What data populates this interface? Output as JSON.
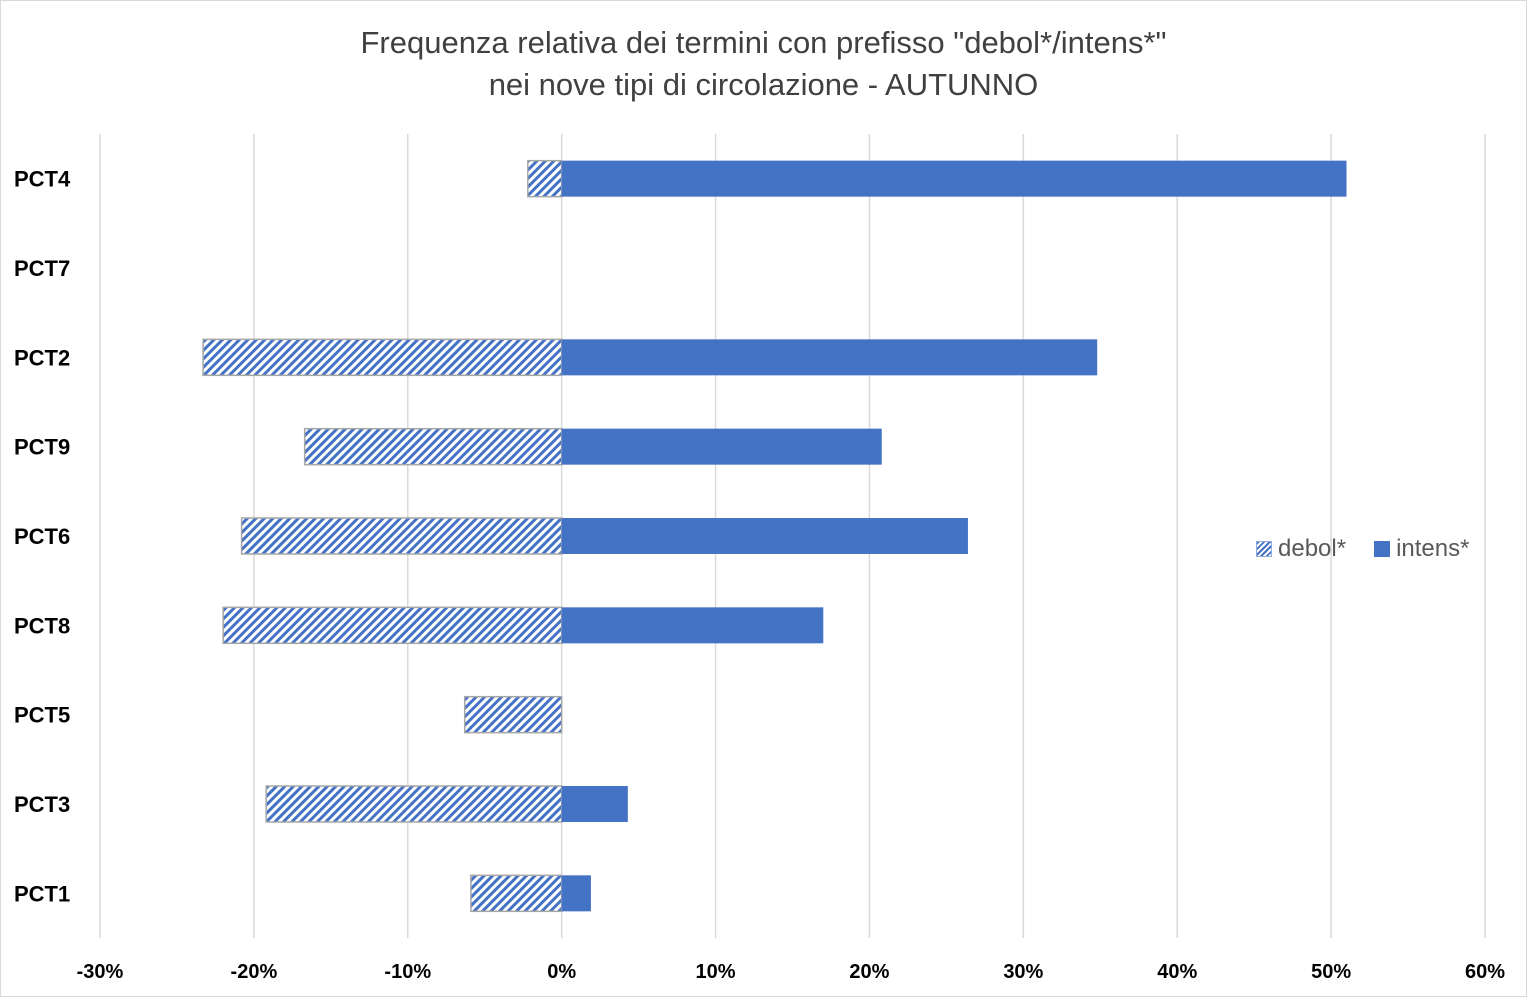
{
  "chart_data": {
    "type": "bar",
    "orientation": "horizontal",
    "title": "Frequenza relativa dei termini con prefisso \"debol*/intens*\"",
    "subtitle": "nei nove tipi di circolazione - AUTUNNO",
    "categories": [
      "PCT4",
      "PCT7",
      "PCT2",
      "PCT9",
      "PCT6",
      "PCT8",
      "PCT5",
      "PCT3",
      "PCT1"
    ],
    "series": [
      {
        "name": "debol*",
        "values": [
          -2.2,
          0,
          -23.3,
          -16.7,
          -20.8,
          -22.0,
          -6.3,
          -19.2,
          -5.9
        ],
        "pattern": "diagonal-hatch",
        "color": "#4472c4"
      },
      {
        "name": "intens*",
        "values": [
          51.0,
          0,
          34.8,
          20.8,
          26.4,
          17.0,
          0,
          4.3,
          1.9
        ],
        "pattern": "solid",
        "color": "#4472c4"
      }
    ],
    "xlim": [
      -30,
      60
    ],
    "xticks": [
      -30,
      -20,
      -10,
      0,
      10,
      20,
      30,
      40,
      50,
      60
    ],
    "xtick_labels": [
      "-30%",
      "-20%",
      "-10%",
      "0%",
      "10%",
      "20%",
      "30%",
      "40%",
      "50%",
      "60%"
    ],
    "grid": "vertical",
    "legend_position": "right",
    "gridline_color": "#d9d9d9"
  }
}
